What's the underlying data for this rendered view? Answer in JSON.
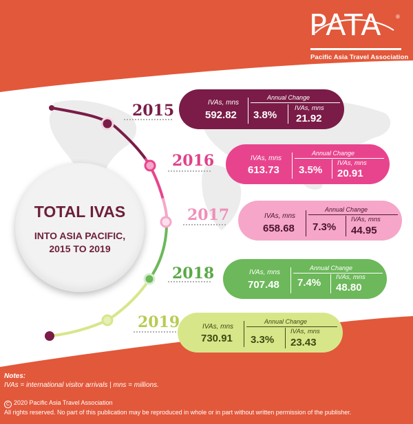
{
  "logo": {
    "text": "PATA",
    "mark": "®",
    "tagline": "Pacific Asia Travel Association"
  },
  "circle": {
    "title": "TOTAL IVAS",
    "line1": "INTO ASIA PACIFIC,",
    "line2": "2015 TO 2019"
  },
  "pill_labels": {
    "ivas": "IVAs, mns",
    "annual": "Annual Change"
  },
  "rows": [
    {
      "year": "2015",
      "ivas": "592.82",
      "change": "3.8%",
      "ivas_change": "21.92",
      "color": "#7a1c47",
      "year_color": "#7a1c47"
    },
    {
      "year": "2016",
      "ivas": "613.73",
      "change": "3.5%",
      "ivas_change": "20.91",
      "color": "#e8448d",
      "year_color": "#e0418a"
    },
    {
      "year": "2017",
      "ivas": "658.68",
      "change": "7.3%",
      "ivas_change": "44.95",
      "color": "#f6a6c9",
      "year_color": "#f08fb9"
    },
    {
      "year": "2018",
      "ivas": "707.48",
      "change": "7.4%",
      "ivas_change": "48.80",
      "color": "#6cb85a",
      "year_color": "#5aa846"
    },
    {
      "year": "2019",
      "ivas": "730.91",
      "change": "3.3%",
      "ivas_change": "23.43",
      "color": "#d8e68a",
      "year_color": "#b8cb52"
    }
  ],
  "notes": {
    "heading": "Notes:",
    "text": "IVAs = international visitor arrivals  |  mns = millions."
  },
  "copyright": {
    "symbol": "C",
    "line1": "2020 Pacific Asia Travel Association",
    "line2": "All rights reserved. No part of this publication may be reproduced in whole or in part without written permission of the publisher."
  },
  "colors": {
    "orange": "#e2583a",
    "maroon": "#6d1e3a",
    "map_grey": "#ececec"
  }
}
